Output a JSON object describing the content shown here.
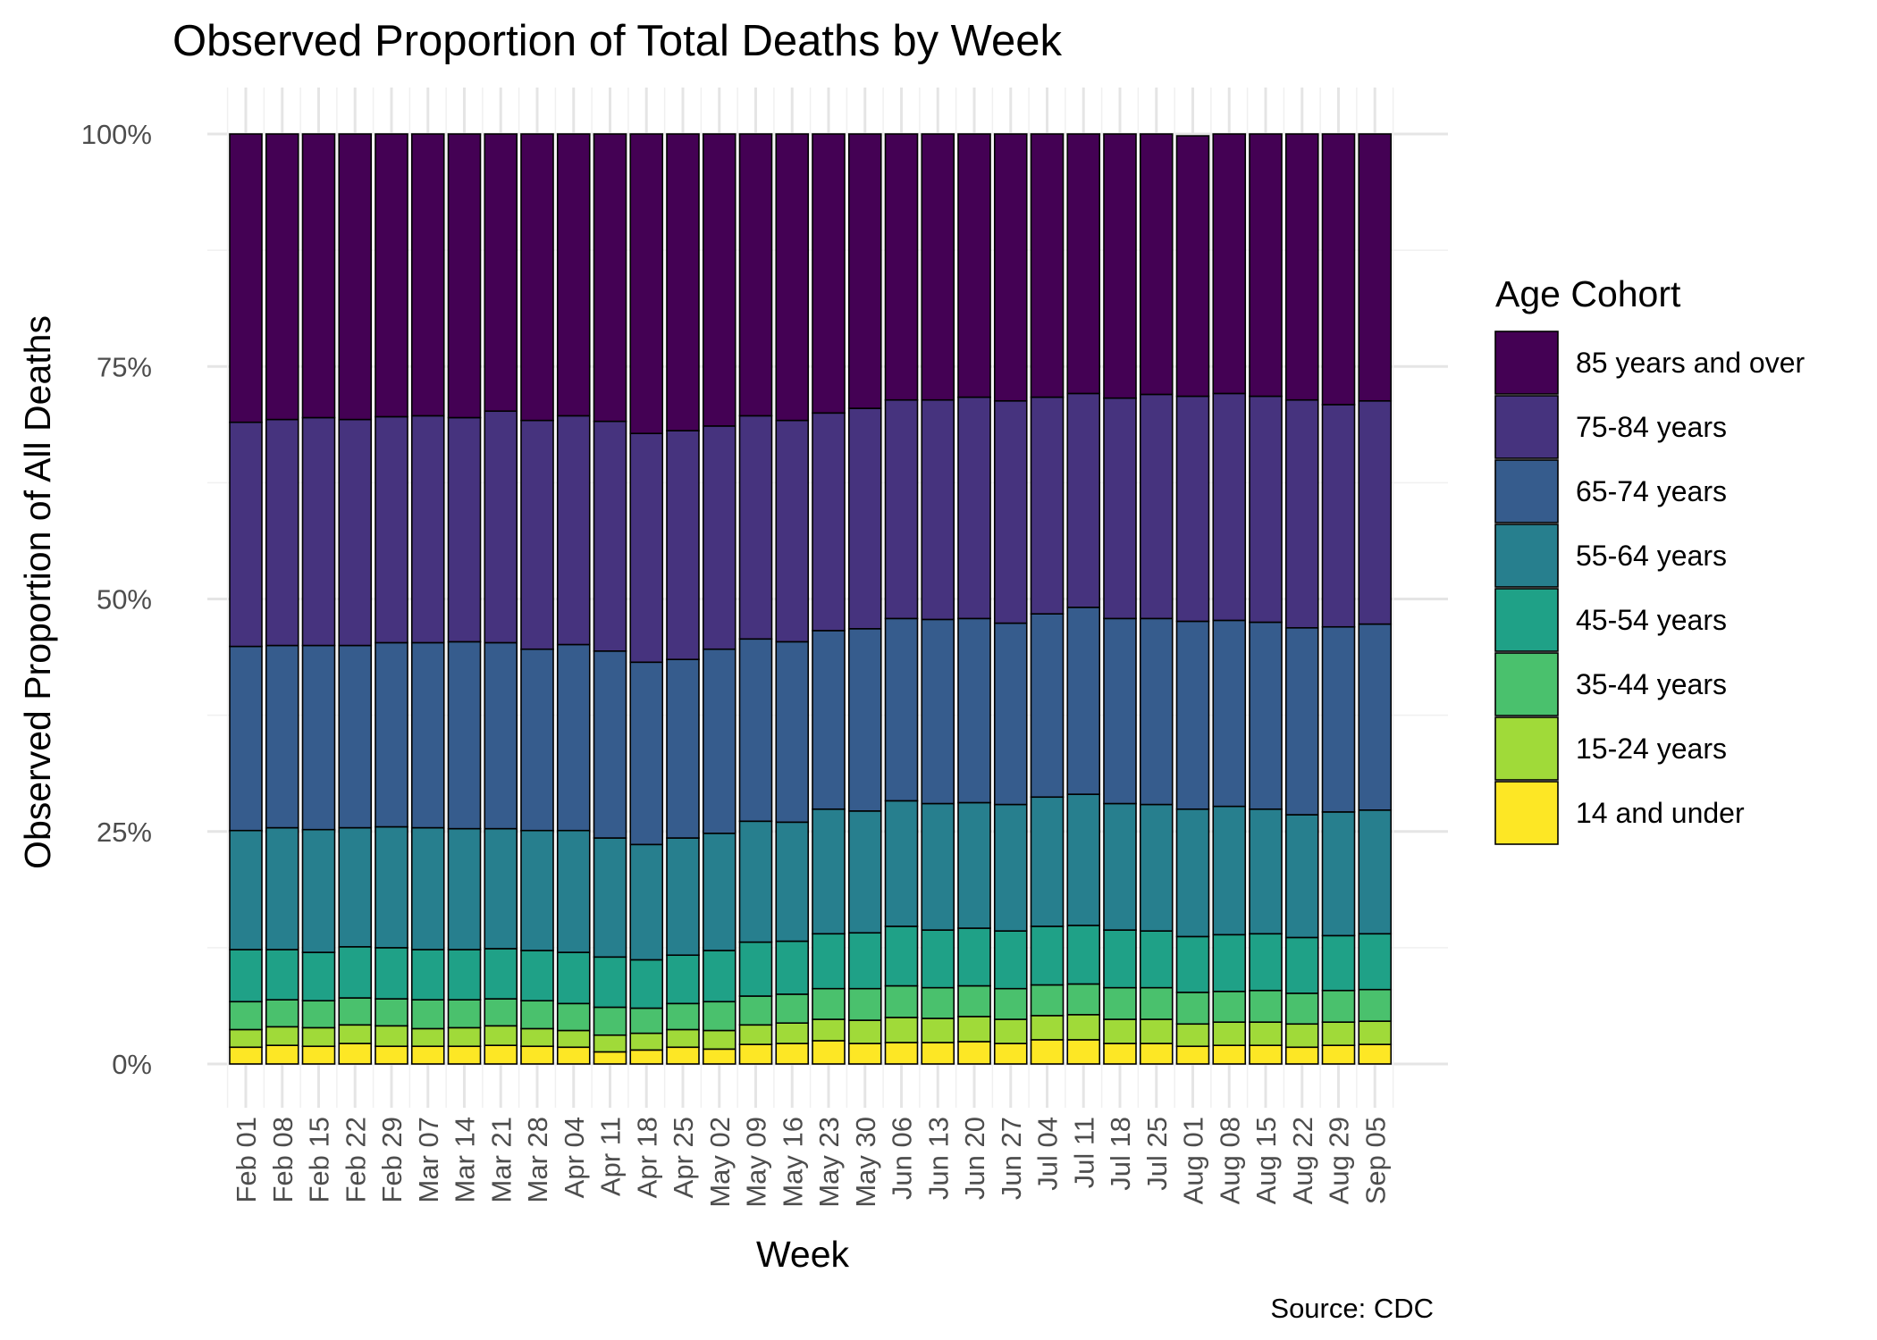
{
  "chart_data": {
    "type": "bar",
    "stacked": "percent",
    "title": "Observed Proportion of Total Deaths by Week",
    "xlabel": "Week",
    "ylabel": "Observed Proportion of All Deaths",
    "caption": "Source: CDC",
    "ylim": [
      0,
      1
    ],
    "yticks": [
      0,
      0.25,
      0.5,
      0.75,
      1
    ],
    "ytick_labels": [
      "0%",
      "25%",
      "50%",
      "75%",
      "100%"
    ],
    "grid": true,
    "legend": {
      "title": "Age Cohort",
      "position": "right"
    },
    "categories": [
      "Feb 01",
      "Feb 08",
      "Feb 15",
      "Feb 22",
      "Feb 29",
      "Mar 07",
      "Mar 14",
      "Mar 21",
      "Mar 28",
      "Apr 04",
      "Apr 11",
      "Apr 18",
      "Apr 25",
      "May 02",
      "May 09",
      "May 16",
      "May 23",
      "May 30",
      "Jun 06",
      "Jun 13",
      "Jun 20",
      "Jun 27",
      "Jul 04",
      "Jul 11",
      "Jul 18",
      "Jul 25",
      "Aug 01",
      "Aug 08",
      "Aug 15",
      "Aug 22",
      "Aug 29",
      "Sep 05"
    ],
    "series": [
      {
        "name": "85 years and over",
        "color": "#440154",
        "values": [
          0.31,
          0.307,
          0.305,
          0.307,
          0.304,
          0.303,
          0.305,
          0.298,
          0.308,
          0.303,
          0.309,
          0.322,
          0.319,
          0.314,
          0.303,
          0.308,
          0.3,
          0.295,
          0.286,
          0.286,
          0.283,
          0.287,
          0.283,
          0.279,
          0.284,
          0.28,
          0.28,
          0.279,
          0.282,
          0.286,
          0.291,
          0.287
        ]
      },
      {
        "name": "75-84 years",
        "color": "#46337E",
        "values": [
          0.241,
          0.243,
          0.245,
          0.243,
          0.243,
          0.244,
          0.241,
          0.249,
          0.246,
          0.246,
          0.247,
          0.246,
          0.246,
          0.24,
          0.24,
          0.238,
          0.234,
          0.237,
          0.235,
          0.236,
          0.238,
          0.239,
          0.233,
          0.23,
          0.237,
          0.241,
          0.242,
          0.244,
          0.243,
          0.245,
          0.239,
          0.24
        ]
      },
      {
        "name": "65-74 years",
        "color": "#365C8D",
        "values": [
          0.198,
          0.196,
          0.198,
          0.196,
          0.198,
          0.199,
          0.201,
          0.2,
          0.195,
          0.2,
          0.201,
          0.196,
          0.192,
          0.198,
          0.196,
          0.194,
          0.192,
          0.196,
          0.196,
          0.198,
          0.198,
          0.195,
          0.197,
          0.201,
          0.199,
          0.2,
          0.202,
          0.2,
          0.201,
          0.201,
          0.199,
          0.2
        ]
      },
      {
        "name": "55-64 years",
        "color": "#277F8E",
        "values": [
          0.128,
          0.131,
          0.132,
          0.128,
          0.13,
          0.131,
          0.13,
          0.129,
          0.129,
          0.131,
          0.128,
          0.124,
          0.126,
          0.126,
          0.13,
          0.128,
          0.134,
          0.131,
          0.135,
          0.136,
          0.135,
          0.136,
          0.139,
          0.141,
          0.136,
          0.136,
          0.137,
          0.138,
          0.134,
          0.132,
          0.133,
          0.133
        ]
      },
      {
        "name": "45-54 years",
        "color": "#1FA187",
        "values": [
          0.056,
          0.054,
          0.052,
          0.055,
          0.055,
          0.054,
          0.054,
          0.054,
          0.054,
          0.055,
          0.054,
          0.052,
          0.052,
          0.055,
          0.058,
          0.057,
          0.059,
          0.06,
          0.064,
          0.062,
          0.062,
          0.062,
          0.063,
          0.063,
          0.062,
          0.061,
          0.06,
          0.061,
          0.061,
          0.06,
          0.059,
          0.06
        ]
      },
      {
        "name": "35-44 years",
        "color": "#4AC16D",
        "values": [
          0.03,
          0.029,
          0.029,
          0.029,
          0.029,
          0.031,
          0.03,
          0.029,
          0.03,
          0.029,
          0.03,
          0.027,
          0.028,
          0.031,
          0.031,
          0.031,
          0.033,
          0.034,
          0.034,
          0.033,
          0.033,
          0.033,
          0.033,
          0.033,
          0.034,
          0.034,
          0.034,
          0.033,
          0.034,
          0.033,
          0.034,
          0.034
        ]
      },
      {
        "name": "15-24 years",
        "color": "#A0DA39",
        "values": [
          0.019,
          0.02,
          0.02,
          0.02,
          0.022,
          0.019,
          0.02,
          0.021,
          0.019,
          0.018,
          0.018,
          0.018,
          0.019,
          0.02,
          0.021,
          0.022,
          0.023,
          0.025,
          0.027,
          0.026,
          0.027,
          0.026,
          0.026,
          0.027,
          0.026,
          0.026,
          0.024,
          0.025,
          0.025,
          0.025,
          0.025,
          0.025
        ]
      },
      {
        "name": "14 and under",
        "color": "#FDE725",
        "values": [
          0.018,
          0.02,
          0.019,
          0.022,
          0.019,
          0.019,
          0.019,
          0.02,
          0.019,
          0.018,
          0.013,
          0.015,
          0.018,
          0.016,
          0.021,
          0.022,
          0.025,
          0.022,
          0.023,
          0.023,
          0.024,
          0.022,
          0.026,
          0.026,
          0.022,
          0.022,
          0.019,
          0.02,
          0.02,
          0.018,
          0.02,
          0.021
        ]
      }
    ]
  }
}
